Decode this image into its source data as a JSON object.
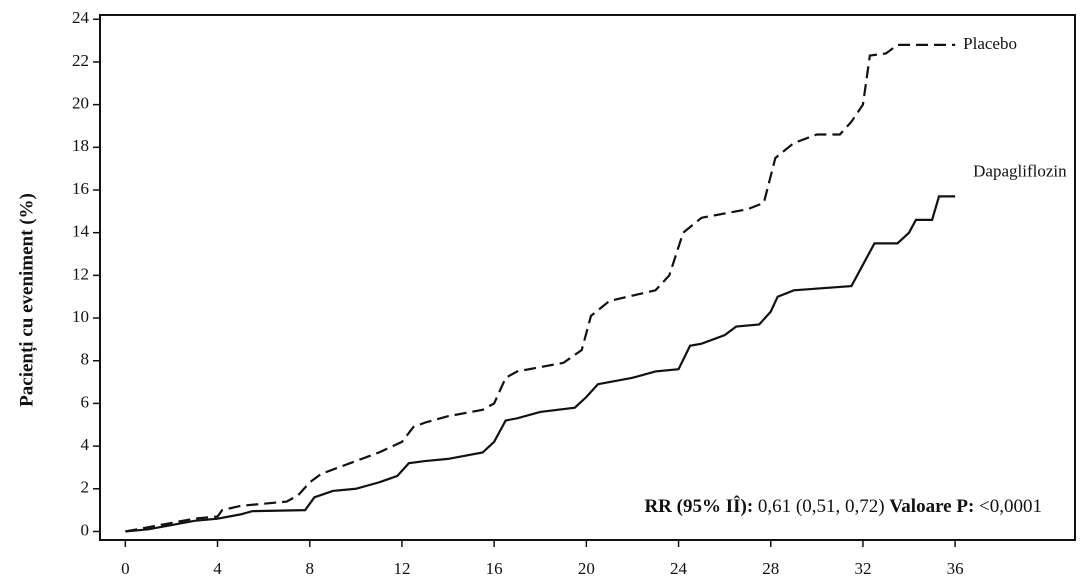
{
  "chart_data": {
    "type": "line",
    "y_label": "Pacienți cu eveniment (%)",
    "annotation": [
      "RR (95% IÎ):",
      "0,61 (0,51, 0,72)",
      "Valoare P:",
      "<0,0001"
    ],
    "xlim": [
      -1.1,
      41.2
    ],
    "xticks": [
      0,
      4,
      8,
      12,
      16,
      20,
      24,
      28,
      32,
      36
    ],
    "ylim": [
      -0.4,
      24.2
    ],
    "yticks": [
      0,
      2,
      4,
      6,
      8,
      10,
      12,
      14,
      16,
      18,
      20,
      22,
      24
    ],
    "series": [
      {
        "name": "Placebo",
        "color": "#111111",
        "dash": true,
        "x": [
          0,
          1,
          2,
          3,
          4,
          4.2,
          5,
          7,
          7.5,
          8,
          8.5,
          10,
          11,
          12,
          12.5,
          13,
          14,
          15.5,
          16,
          16.5,
          17,
          19,
          19.8,
          20.2,
          21,
          23,
          23.6,
          24.2,
          25,
          27,
          27.7,
          28.2,
          29,
          30,
          31,
          31.5,
          32,
          32.3,
          33,
          33.5,
          36
        ],
        "values": [
          0,
          0.2,
          0.4,
          0.6,
          0.7,
          1.0,
          1.2,
          1.4,
          1.7,
          2.3,
          2.7,
          3.3,
          3.7,
          4.2,
          4.9,
          5.1,
          5.4,
          5.7,
          6.0,
          7.2,
          7.5,
          7.9,
          8.5,
          10.1,
          10.8,
          11.3,
          12.0,
          14.0,
          14.7,
          15.1,
          15.4,
          17.5,
          18.2,
          18.6,
          18.6,
          19.2,
          20.0,
          22.3,
          22.4,
          22.8,
          22.8
        ]
      },
      {
        "name": "Dapagliflozin",
        "color": "#111111",
        "dash": false,
        "x": [
          0,
          1,
          2,
          3,
          4,
          5,
          5.5,
          7.8,
          8.2,
          9,
          10,
          11,
          11.8,
          12.3,
          13,
          14,
          15.5,
          16,
          16.5,
          17,
          18,
          19.5,
          20,
          20.5,
          22,
          23,
          24,
          24.5,
          25,
          26,
          26.5,
          27.5,
          28,
          28.3,
          29,
          31.5,
          32,
          32.5,
          33.5,
          34,
          34.3,
          35,
          35.3,
          36
        ],
        "values": [
          0,
          0.1,
          0.3,
          0.5,
          0.6,
          0.8,
          0.95,
          1.0,
          1.6,
          1.9,
          2.0,
          2.3,
          2.6,
          3.2,
          3.3,
          3.4,
          3.7,
          4.2,
          5.2,
          5.3,
          5.6,
          5.8,
          6.3,
          6.9,
          7.2,
          7.5,
          7.6,
          8.7,
          8.8,
          9.2,
          9.6,
          9.7,
          10.3,
          11.0,
          11.3,
          11.5,
          12.5,
          13.5,
          13.5,
          14.0,
          14.6,
          14.6,
          15.7,
          15.7
        ]
      }
    ]
  }
}
